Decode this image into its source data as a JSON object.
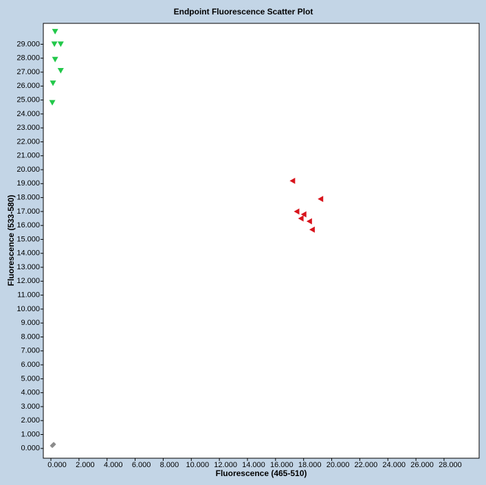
{
  "chart_data": {
    "type": "scatter",
    "title": "Endpoint Fluorescence Scatter Plot",
    "x_label": "Fluorescence (465-510)",
    "y_label": "Fluorescence (533-580)",
    "xlim": [
      -540,
      30500
    ],
    "ylim": [
      -700,
      30500
    ],
    "xticks": [
      {
        "value": 0,
        "label": "0.000"
      },
      {
        "value": 2000,
        "label": "2.000"
      },
      {
        "value": 4000,
        "label": "4.000"
      },
      {
        "value": 6000,
        "label": "6.000"
      },
      {
        "value": 8000,
        "label": "8.000"
      },
      {
        "value": 10000,
        "label": "10.000"
      },
      {
        "value": 12000,
        "label": "12.000"
      },
      {
        "value": 14000,
        "label": "14.000"
      },
      {
        "value": 16000,
        "label": "16.000"
      },
      {
        "value": 18000,
        "label": "18.000"
      },
      {
        "value": 20000,
        "label": "20.000"
      },
      {
        "value": 22000,
        "label": "22.000"
      },
      {
        "value": 24000,
        "label": "24.000"
      },
      {
        "value": 26000,
        "label": "26.000"
      },
      {
        "value": 28000,
        "label": "28.000"
      }
    ],
    "yticks": [
      {
        "value": 0,
        "label": "0.000"
      },
      {
        "value": 1000,
        "label": "1.000"
      },
      {
        "value": 2000,
        "label": "2.000"
      },
      {
        "value": 3000,
        "label": "3.000"
      },
      {
        "value": 4000,
        "label": "4.000"
      },
      {
        "value": 5000,
        "label": "5.000"
      },
      {
        "value": 6000,
        "label": "6.000"
      },
      {
        "value": 7000,
        "label": "7.000"
      },
      {
        "value": 8000,
        "label": "8.000"
      },
      {
        "value": 9000,
        "label": "9.000"
      },
      {
        "value": 10000,
        "label": "10.000"
      },
      {
        "value": 11000,
        "label": "11.000"
      },
      {
        "value": 12000,
        "label": "12.000"
      },
      {
        "value": 13000,
        "label": "13.000"
      },
      {
        "value": 14000,
        "label": "14.000"
      },
      {
        "value": 15000,
        "label": "15.000"
      },
      {
        "value": 16000,
        "label": "16.000"
      },
      {
        "value": 17000,
        "label": "17.000"
      },
      {
        "value": 18000,
        "label": "18.000"
      },
      {
        "value": 19000,
        "label": "19.000"
      },
      {
        "value": 20000,
        "label": "20.000"
      },
      {
        "value": 21000,
        "label": "21.000"
      },
      {
        "value": 22000,
        "label": "22.000"
      },
      {
        "value": 23000,
        "label": "23.000"
      },
      {
        "value": 24000,
        "label": "24.000"
      },
      {
        "value": 25000,
        "label": "25.000"
      },
      {
        "value": 26000,
        "label": "26.000"
      },
      {
        "value": 27000,
        "label": "27.000"
      },
      {
        "value": 28000,
        "label": "28.000"
      },
      {
        "value": 29000,
        "label": "29.000"
      }
    ],
    "grid": false,
    "series": [
      {
        "color": "#22c84a",
        "marker": "triangle-down",
        "x": [
          300,
          250,
          700,
          300,
          700,
          150,
          100
        ],
        "values": [
          29900,
          29000,
          29000,
          27900,
          27100,
          26200,
          24800
        ]
      },
      {
        "color": "#d8141c",
        "marker": "triangle-left",
        "x": [
          17200,
          19200,
          17500,
          18000,
          17800,
          18400,
          18600
        ],
        "values": [
          19200,
          17900,
          17000,
          16800,
          16500,
          16300,
          15700
        ]
      },
      {
        "color": "#8c8c8c",
        "marker": "diamond",
        "x": [
          100,
          200,
          150
        ],
        "values": [
          200,
          300,
          250
        ]
      }
    ]
  }
}
